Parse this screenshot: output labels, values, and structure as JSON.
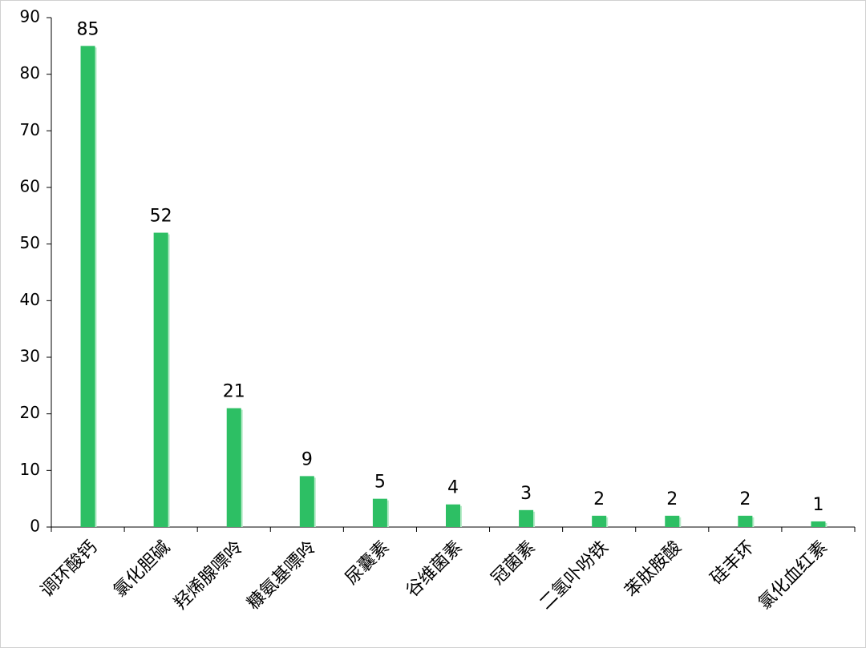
{
  "chart_data": {
    "type": "bar",
    "categories": [
      "调环酸钙",
      "氯化胆碱",
      "羟烯腺嘌呤",
      "糠氨基嘌呤",
      "尿囊素",
      "谷维菌素",
      "冠菌素",
      "二氢卟吩铁",
      "苯肽胺酸",
      "硅丰环",
      "氯化血红素"
    ],
    "values": [
      85,
      52,
      21,
      9,
      5,
      4,
      3,
      2,
      2,
      2,
      1
    ],
    "color": "#2dbf64",
    "ylim": [
      0,
      90
    ],
    "yticks": [
      0,
      10,
      20,
      30,
      40,
      50,
      60,
      70,
      80,
      90
    ],
    "grid": false
  }
}
